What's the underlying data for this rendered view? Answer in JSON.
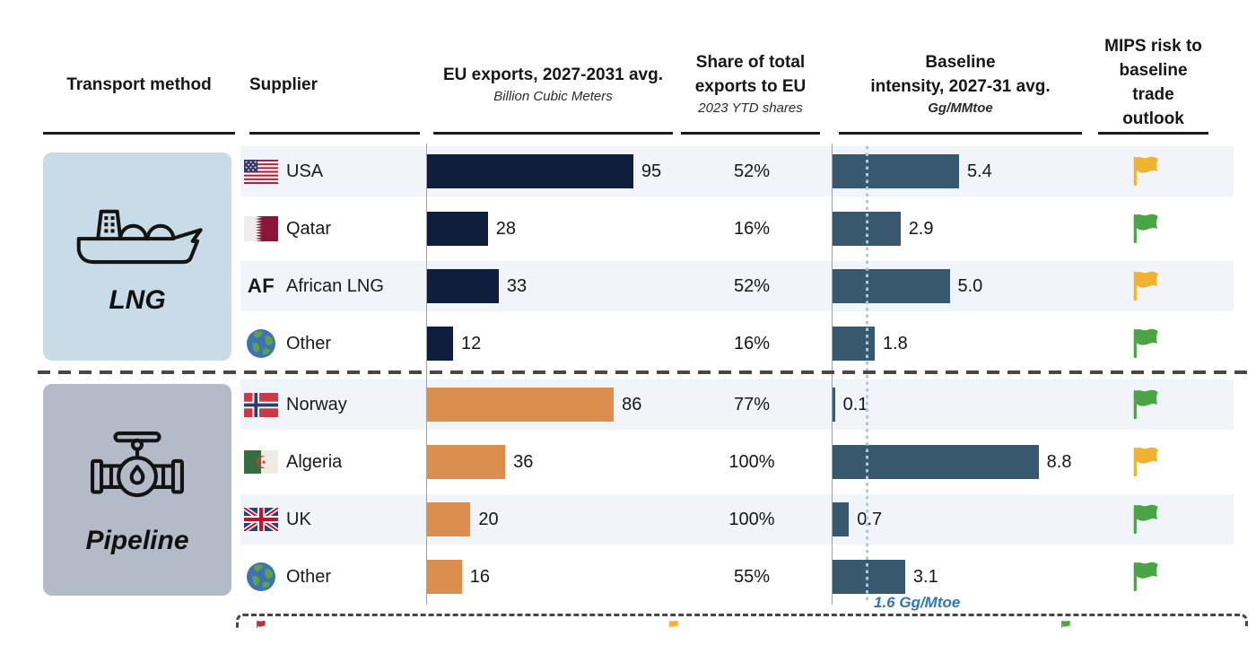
{
  "columns": [
    {
      "id": "transport",
      "title_lines": [
        "Transport method"
      ]
    },
    {
      "id": "supplier",
      "title_lines": [
        "Supplier"
      ]
    },
    {
      "id": "exports",
      "title_lines": [
        "EU exports, 2027-2031 avg."
      ],
      "subtitle": "Billion Cubic Meters"
    },
    {
      "id": "share",
      "title_lines": [
        "Share of total",
        "exports to EU"
      ],
      "subtitle": "2023 YTD shares"
    },
    {
      "id": "intensity",
      "title_lines": [
        "Baseline",
        "intensity, 2027-31 avg."
      ],
      "subtitle": "Gg/MMtoe"
    },
    {
      "id": "mips",
      "title_lines": [
        "MIPS risk to",
        "baseline",
        "trade",
        "outlook"
      ]
    }
  ],
  "sections": [
    {
      "label": "LNG",
      "bar_color": "#0e1e3c",
      "rows": [
        {
          "supplier": "USA",
          "flag": "usa",
          "exports": 95,
          "share": "52%",
          "intensity": "5.4",
          "risk": "yellow"
        },
        {
          "supplier": "Qatar",
          "flag": "qatar",
          "exports": 28,
          "share": "16%",
          "intensity": "2.9",
          "risk": "green"
        },
        {
          "supplier": "African LNG",
          "flag": "af",
          "flag_text": "AF",
          "exports": 33,
          "share": "52%",
          "intensity": "5.0",
          "risk": "yellow"
        },
        {
          "supplier": "Other",
          "flag": "globe",
          "exports": 12,
          "share": "16%",
          "intensity": "1.8",
          "risk": "green"
        }
      ]
    },
    {
      "label": "Pipeline",
      "bar_color": "#dc8e4f",
      "rows": [
        {
          "supplier": "Norway",
          "flag": "norway",
          "exports": 86,
          "share": "77%",
          "intensity": "0.1",
          "risk": "green"
        },
        {
          "supplier": "Algeria",
          "flag": "algeria",
          "exports": 36,
          "share": "100%",
          "intensity": "8.8",
          "risk": "yellow"
        },
        {
          "supplier": "UK",
          "flag": "uk",
          "exports": 20,
          "share": "100%",
          "intensity": "0.7",
          "risk": "green"
        },
        {
          "supplier": "Other",
          "flag": "globe",
          "exports": 16,
          "share": "55%",
          "intensity": "3.1",
          "risk": "green"
        }
      ]
    }
  ],
  "reference_line": {
    "value": 1.6,
    "label": "1.6 Gg/Mtoe",
    "color": "#2F76B6",
    "line_color": "#a9c9e4"
  },
  "risk_colors": {
    "yellow": "#F0B331",
    "green": "#4BA546"
  },
  "intensity_bar_color": "#38586d",
  "bottom_legend": {
    "flag_colors": [
      "#B03A3A",
      "#F0B331",
      "#4BA546"
    ]
  },
  "chart_data": [
    {
      "type": "bar",
      "title": "EU exports, 2027-2031 avg.",
      "ylabel": "Billion Cubic Meters",
      "categories": [
        "USA",
        "Qatar",
        "African LNG",
        "Other (LNG)",
        "Norway",
        "Algeria",
        "UK",
        "Other (Pipeline)"
      ],
      "values": [
        95,
        28,
        33,
        12,
        86,
        36,
        20,
        16
      ],
      "groups": [
        "LNG",
        "LNG",
        "LNG",
        "LNG",
        "Pipeline",
        "Pipeline",
        "Pipeline",
        "Pipeline"
      ],
      "xlim": [
        0,
        100
      ],
      "grid": false,
      "orientation": "horizontal"
    },
    {
      "type": "table",
      "title": "Share of total exports to EU (2023 YTD shares)",
      "categories": [
        "USA",
        "Qatar",
        "African LNG",
        "Other (LNG)",
        "Norway",
        "Algeria",
        "UK",
        "Other (Pipeline)"
      ],
      "values": [
        "52%",
        "16%",
        "52%",
        "16%",
        "77%",
        "100%",
        "100%",
        "55%"
      ]
    },
    {
      "type": "bar",
      "title": "Baseline intensity, 2027-31 avg.",
      "ylabel": "Gg/MMtoe",
      "categories": [
        "USA",
        "Qatar",
        "African LNG",
        "Other (LNG)",
        "Norway",
        "Algeria",
        "UK",
        "Other (Pipeline)"
      ],
      "values": [
        5.4,
        2.9,
        5.0,
        1.8,
        0.1,
        8.8,
        0.7,
        3.1
      ],
      "reference_line": 1.6,
      "xlim": [
        0,
        9
      ],
      "grid": false,
      "orientation": "horizontal"
    },
    {
      "type": "table",
      "title": "MIPS risk to baseline trade outlook",
      "categories": [
        "USA",
        "Qatar",
        "African LNG",
        "Other (LNG)",
        "Norway",
        "Algeria",
        "UK",
        "Other (Pipeline)"
      ],
      "values": [
        "yellow-flag",
        "green-flag",
        "yellow-flag",
        "green-flag",
        "green-flag",
        "yellow-flag",
        "green-flag",
        "green-flag"
      ]
    }
  ]
}
